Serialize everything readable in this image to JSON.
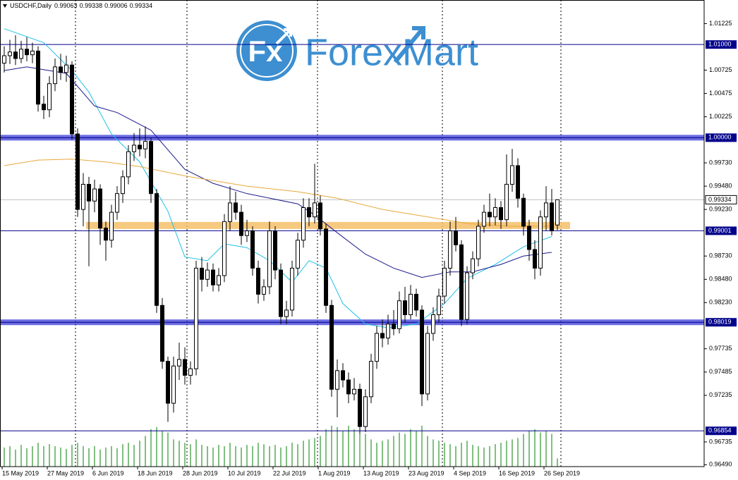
{
  "chart_data": {
    "type": "candlestick",
    "symbol": "USDCHF,Daily",
    "watermark": {
      "badge": "Fx",
      "text": "ForexMart",
      "color": "#3d8fd1"
    },
    "categories": [
      "15 May 2019",
      null,
      null,
      null,
      null,
      null,
      null,
      null,
      "27 May 2019",
      null,
      null,
      null,
      null,
      null,
      null,
      null,
      "6 Jun 2019",
      null,
      null,
      null,
      null,
      null,
      null,
      null,
      "18 Jun 2019",
      null,
      null,
      null,
      null,
      null,
      null,
      null,
      "28 Jun 2019",
      null,
      null,
      null,
      null,
      null,
      null,
      null,
      "10 Jul 2019",
      null,
      null,
      null,
      null,
      null,
      null,
      null,
      "22 Jul 2019",
      null,
      null,
      null,
      null,
      null,
      null,
      null,
      "1 Aug 2019",
      null,
      null,
      null,
      null,
      null,
      null,
      null,
      "13 Aug 2019",
      null,
      null,
      null,
      null,
      null,
      null,
      null,
      "23 Aug 2019",
      null,
      null,
      null,
      null,
      null,
      null,
      null,
      "4 Sep 2019",
      null,
      null,
      null,
      null,
      null,
      null,
      null,
      "16 Sep 2019",
      null,
      null,
      null,
      null,
      null,
      null,
      null,
      "26 Sep 2019",
      null,
      null
    ],
    "ohlc": [
      [
        1.008,
        1.0098,
        1.007,
        1.0088
      ],
      [
        1.0088,
        1.0105,
        1.0079,
        1.0092
      ],
      [
        1.0092,
        1.011,
        1.0078,
        1.0085
      ],
      [
        1.0085,
        1.0104,
        1.008,
        1.0095
      ],
      [
        1.0095,
        1.0108,
        1.0082,
        1.0089
      ],
      [
        1.0089,
        1.0102,
        1.008,
        1.0093
      ],
      [
        1.0093,
        1.0098,
        1.0028,
        1.0036
      ],
      [
        1.0036,
        1.0045,
        1.002,
        1.003
      ],
      [
        1.003,
        1.0066,
        1.0022,
        1.0058
      ],
      [
        1.0058,
        1.0085,
        1.005,
        1.0076
      ],
      [
        1.0076,
        1.009,
        1.0062,
        1.007
      ],
      [
        1.007,
        1.0088,
        1.006,
        1.0078
      ],
      [
        1.0078,
        1.0082,
        0.9998,
        1.0004
      ],
      [
        1.0004,
        1.001,
        0.9915,
        0.9923
      ],
      [
        0.9923,
        0.9962,
        0.9905,
        0.995
      ],
      [
        0.995,
        0.9958,
        0.9862,
        0.9932
      ],
      [
        0.9932,
        0.9955,
        0.992,
        0.9945
      ],
      [
        0.9945,
        0.995,
        0.9885,
        0.9903
      ],
      [
        0.9903,
        0.991,
        0.9868,
        0.989
      ],
      [
        0.989,
        0.9928,
        0.9882,
        0.992
      ],
      [
        0.992,
        0.9948,
        0.9912,
        0.994
      ],
      [
        0.994,
        0.9965,
        0.993,
        0.9958
      ],
      [
        0.9958,
        0.9992,
        0.995,
        0.9985
      ],
      [
        0.9985,
        1.0005,
        0.9975,
        0.9992
      ],
      [
        0.9992,
        1.001,
        0.998,
        0.9988
      ],
      [
        0.9988,
        1.0012,
        0.9978,
        0.9996
      ],
      [
        0.9996,
        1.0,
        0.993,
        0.994
      ],
      [
        0.994,
        0.9945,
        0.9812,
        0.982
      ],
      [
        0.982,
        0.9828,
        0.9752,
        0.976
      ],
      [
        0.976,
        0.9765,
        0.9695,
        0.9715
      ],
      [
        0.9715,
        0.9765,
        0.9705,
        0.9755
      ],
      [
        0.9755,
        0.978,
        0.974,
        0.9762
      ],
      [
        0.9762,
        0.9775,
        0.9735,
        0.9745
      ],
      [
        0.9745,
        0.976,
        0.9735,
        0.9752
      ],
      [
        0.9752,
        0.9868,
        0.9745,
        0.986
      ],
      [
        0.986,
        0.9872,
        0.9835,
        0.9848
      ],
      [
        0.9848,
        0.9866,
        0.984,
        0.9858
      ],
      [
        0.9858,
        0.9865,
        0.9835,
        0.9842
      ],
      [
        0.9842,
        0.986,
        0.9835,
        0.9852
      ],
      [
        0.9852,
        0.9918,
        0.9845,
        0.991
      ],
      [
        0.991,
        0.9948,
        0.99,
        0.993
      ],
      [
        0.993,
        0.9942,
        0.9912,
        0.992
      ],
      [
        0.992,
        0.9928,
        0.9885,
        0.9895
      ],
      [
        0.9895,
        0.9912,
        0.9888,
        0.99
      ],
      [
        0.99,
        0.9905,
        0.9852,
        0.986
      ],
      [
        0.986,
        0.9868,
        0.9822,
        0.9832
      ],
      [
        0.9832,
        0.9848,
        0.9825,
        0.984
      ],
      [
        0.984,
        0.991,
        0.9832,
        0.99
      ],
      [
        0.99,
        0.9905,
        0.9848,
        0.9858
      ],
      [
        0.9858,
        0.9865,
        0.98,
        0.9808
      ],
      [
        0.9808,
        0.9825,
        0.98,
        0.9815
      ],
      [
        0.9815,
        0.9868,
        0.9808,
        0.986
      ],
      [
        0.986,
        0.9898,
        0.9852,
        0.989
      ],
      [
        0.989,
        0.9935,
        0.9882,
        0.9925
      ],
      [
        0.9925,
        0.9935,
        0.9905,
        0.9915
      ],
      [
        0.9915,
        0.9972,
        0.9908,
        0.993
      ],
      [
        0.993,
        0.9938,
        0.9895,
        0.9902
      ],
      [
        0.9902,
        0.9908,
        0.9812,
        0.982
      ],
      [
        0.982,
        0.9826,
        0.9722,
        0.973
      ],
      [
        0.973,
        0.9762,
        0.97,
        0.975
      ],
      [
        0.975,
        0.9758,
        0.9732,
        0.974
      ],
      [
        0.974,
        0.9748,
        0.9715,
        0.9725
      ],
      [
        0.9725,
        0.9742,
        0.9718,
        0.973
      ],
      [
        0.973,
        0.9736,
        0.9682,
        0.969
      ],
      [
        0.969,
        0.973,
        0.9684,
        0.9722
      ],
      [
        0.9722,
        0.9768,
        0.9715,
        0.976
      ],
      [
        0.976,
        0.9798,
        0.9752,
        0.979
      ],
      [
        0.979,
        0.9805,
        0.9775,
        0.9785
      ],
      [
        0.9785,
        0.981,
        0.9778,
        0.98
      ],
      [
        0.98,
        0.9815,
        0.9788,
        0.9795
      ],
      [
        0.9795,
        0.9835,
        0.979,
        0.9825
      ],
      [
        0.9825,
        0.984,
        0.9802,
        0.981
      ],
      [
        0.981,
        0.9842,
        0.9805,
        0.9832
      ],
      [
        0.9832,
        0.9838,
        0.9808,
        0.9815
      ],
      [
        0.9815,
        0.982,
        0.9712,
        0.9725
      ],
      [
        0.9725,
        0.9798,
        0.9718,
        0.979
      ],
      [
        0.979,
        0.9818,
        0.9782,
        0.981
      ],
      [
        0.981,
        0.9838,
        0.9802,
        0.983
      ],
      [
        0.983,
        0.9868,
        0.9822,
        0.986
      ],
      [
        0.986,
        0.991,
        0.9852,
        0.99
      ],
      [
        0.99,
        0.9915,
        0.9878,
        0.9885
      ],
      [
        0.9885,
        0.989,
        0.9798,
        0.9805
      ],
      [
        0.9805,
        0.9862,
        0.98,
        0.9855
      ],
      [
        0.9855,
        0.9878,
        0.9848,
        0.987
      ],
      [
        0.987,
        0.9912,
        0.9862,
        0.9905
      ],
      [
        0.9905,
        0.9928,
        0.9898,
        0.992
      ],
      [
        0.992,
        0.994,
        0.9905,
        0.9915
      ],
      [
        0.9915,
        0.9935,
        0.9906,
        0.9925
      ],
      [
        0.9925,
        0.9932,
        0.9902,
        0.9912
      ],
      [
        0.9912,
        0.9982,
        0.9905,
        0.995
      ],
      [
        0.995,
        0.9988,
        0.9942,
        0.997
      ],
      [
        0.997,
        0.9978,
        0.9925,
        0.9935
      ],
      [
        0.9935,
        0.994,
        0.9895,
        0.9905
      ],
      [
        0.9905,
        0.9912,
        0.9868,
        0.988
      ],
      [
        0.988,
        0.989,
        0.9848,
        0.986
      ],
      [
        0.986,
        0.9922,
        0.9852,
        0.9915
      ],
      [
        0.9915,
        0.9948,
        0.99,
        0.993
      ],
      [
        0.993,
        0.9945,
        0.9895,
        0.99
      ],
      [
        0.99063,
        0.99338,
        0.99006,
        0.99334
      ]
    ],
    "up_color": "#ffffff",
    "down_color": "#000000",
    "volume": [
      28,
      30,
      25,
      32,
      27,
      30,
      35,
      30,
      33,
      30,
      28,
      26,
      32,
      35,
      30,
      27,
      30,
      25,
      28,
      30,
      27,
      33,
      35,
      32,
      38,
      45,
      55,
      58,
      52,
      50,
      40,
      38,
      35,
      33,
      40,
      32,
      30,
      28,
      32,
      30,
      35,
      30,
      28,
      32,
      30,
      35,
      33,
      30,
      32,
      28,
      30,
      35,
      33,
      38,
      40,
      42,
      45,
      55,
      60,
      58,
      52,
      60,
      55,
      52,
      48,
      40,
      35,
      38,
      40,
      45,
      50,
      48,
      55,
      52,
      60,
      45,
      40,
      38,
      35,
      33,
      30,
      35,
      38,
      32,
      30,
      28,
      30,
      33,
      35,
      38,
      40,
      42,
      48,
      52,
      55,
      50,
      52,
      48,
      12
    ],
    "volume_color": "#008000",
    "indicators": [
      {
        "color": "#1ec0e8",
        "x": [
          0,
          7,
          12,
          15,
          19,
          24,
          29,
          32,
          36,
          39,
          43,
          47,
          51,
          54,
          57,
          60,
          64,
          68,
          73,
          78,
          82,
          87,
          92,
          97
        ],
        "values": [
          1.0117,
          1.0102,
          1.0072,
          1.0049,
          1.0004,
          0.9974,
          0.9921,
          0.9872,
          0.9868,
          0.9886,
          0.9882,
          0.9868,
          0.9845,
          0.9868,
          0.986,
          0.9822,
          0.98,
          0.9796,
          0.98,
          0.9822,
          0.9849,
          0.9864,
          0.9883,
          0.9894
        ]
      },
      {
        "color": "#1a1a8c",
        "x": [
          0,
          4,
          11,
          16,
          20,
          26,
          32,
          37,
          43,
          52,
          55,
          59,
          64,
          69,
          74,
          79,
          83,
          88,
          92,
          97
        ],
        "values": [
          1.0072,
          1.0076,
          1.0069,
          1.0034,
          1.0027,
          1.0008,
          0.9966,
          0.9951,
          0.994,
          0.9929,
          0.9917,
          0.9898,
          0.9875,
          0.986,
          0.985,
          0.9856,
          0.9856,
          0.9864,
          0.9873,
          0.9877
        ]
      },
      {
        "color": "#e8a93a",
        "x": [
          0,
          6,
          12,
          18,
          24,
          32,
          43,
          52,
          59,
          67,
          74,
          82,
          89,
          97
        ],
        "values": [
          0.997,
          0.9976,
          0.9977,
          0.9974,
          0.9969,
          0.9959,
          0.9948,
          0.9942,
          0.9935,
          0.9923,
          0.9916,
          0.9908,
          0.9905,
          0.9905
        ]
      }
    ],
    "levels": [
      {
        "value": 1.01,
        "label": "1.01000",
        "style": "thin",
        "color": "#00008b"
      },
      {
        "value": 1.0,
        "label": "1.00000",
        "style": "thick",
        "color": "#3a3ad6"
      },
      {
        "value": 0.99001,
        "label": "0.99001",
        "style": "thin",
        "color": "#00008b"
      },
      {
        "value": 0.98019,
        "label": "0.98019",
        "style": "thick",
        "color": "#3a3ad6"
      },
      {
        "value": 0.96854,
        "label": "0.96854",
        "style": "thin",
        "color": "#00008b"
      }
    ],
    "zone": {
      "value": 0.99058,
      "start": 15,
      "color": "#f5c06a"
    },
    "ylim": [
      0.9647,
      1.0144
    ],
    "yticks": [
      1.01225,
      {
        "value": 1.00725,
        "label": "1.00725"
      },
      1.00475,
      1.00225,
      {
        "value": 0.9973,
        "label": "0.99730"
      },
      {
        "value": 0.9948,
        "label": "0.99480"
      },
      {
        "value": 0.9923,
        "label": "0.99230"
      },
      {
        "value": 0.9873,
        "label": "0.98730"
      },
      {
        "value": 0.9848,
        "label": "0.98480"
      },
      {
        "value": 0.9823,
        "label": "0.98230"
      },
      0.97735,
      0.97485,
      0.97235,
      0.96735,
      {
        "value": 0.9649,
        "label": "0.96490"
      }
    ]
  }
}
